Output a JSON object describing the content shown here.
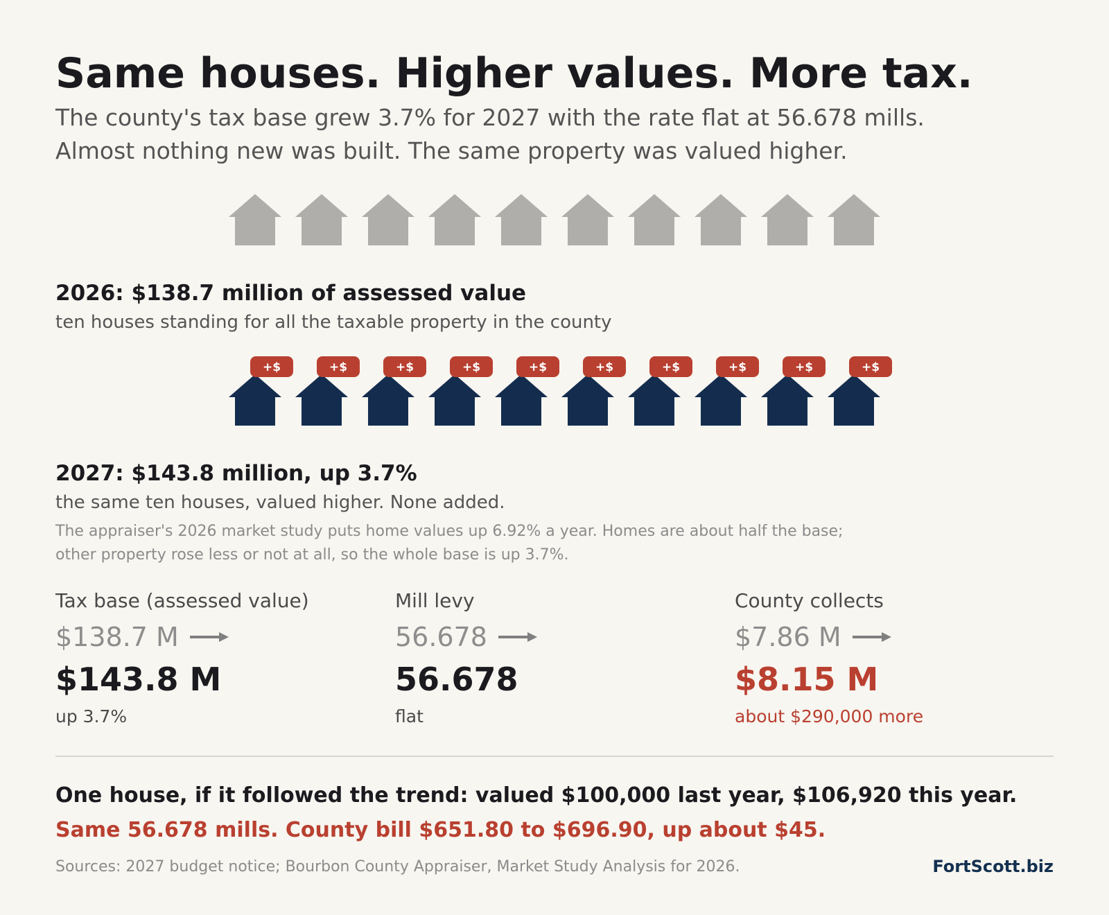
{
  "header": {
    "title": "Same houses. Higher values. More tax.",
    "subtitle_line1": "The county's tax base grew 3.7% for 2027 with the rate flat at 56.678 mills.",
    "subtitle_line2": "Almost nothing new was built. The same property was valued higher."
  },
  "houses_2026": {
    "count": 10,
    "color": "#b0aeab"
  },
  "section_2026": {
    "heading": "2026:  $138.7 million of assessed value",
    "caption": "ten houses standing for all the taxable property in the county"
  },
  "houses_2027": {
    "count": 10,
    "color": "#142d4e",
    "badge_label": "+$",
    "badge_color": "#b94030"
  },
  "section_2027": {
    "heading": "2027:  $143.8 million, up 3.7%",
    "caption": "the same ten houses, valued higher. None added.",
    "note_line1": "The appraiser's 2026 market study puts home values up 6.92% a year. Homes are about half the base;",
    "note_line2": "other property rose less or not at all, so the whole base is up 3.7%."
  },
  "stats": [
    {
      "label": "Tax base (assessed value)",
      "old": "$138.7 M",
      "new": "$143.8 M",
      "note": "up 3.7%"
    },
    {
      "label": "Mill levy",
      "old": "56.678",
      "new": "56.678",
      "note": "flat"
    },
    {
      "label": "County collects",
      "old": "$7.86 M",
      "new": "$8.15 M",
      "note": "about $290,000 more"
    }
  ],
  "example": {
    "line1": "One house, if it followed the trend:  valued $100,000 last year, $106,920 this year.",
    "line2": "Same 56.678 mills. County bill $651.80 to $696.90, up about $45."
  },
  "footer": {
    "sources": "Sources: 2027 budget notice; Bourbon County Appraiser, Market Study Analysis for 2026.",
    "brand": "FortScott.biz"
  },
  "colors": {
    "accent_red": "#b94030",
    "navy": "#142d4e",
    "gray_house": "#b0aeab"
  }
}
